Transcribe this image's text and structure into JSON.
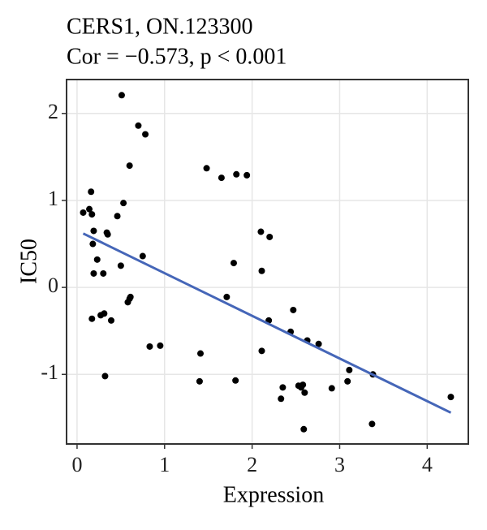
{
  "chart_data": {
    "type": "scatter",
    "title": "CERS1, ON.123300",
    "subtitle": "Cor = −0.573, p < 0.001",
    "x_label": "Expression",
    "y_label": "IC50",
    "xlim": [
      -0.12,
      4.47
    ],
    "ylim": [
      -1.8,
      2.39
    ],
    "xticks": [
      0,
      1,
      2,
      3,
      4
    ],
    "yticks": [
      -1,
      0,
      1,
      2
    ],
    "grid": true,
    "color": "#000000",
    "x": [
      0.07,
      0.14,
      0.16,
      0.17,
      0.19,
      0.18,
      0.23,
      0.19,
      0.3,
      0.17,
      0.27,
      0.31,
      0.34,
      0.35,
      0.39,
      0.32,
      0.46,
      0.53,
      0.51,
      0.5,
      0.6,
      0.58,
      0.61,
      0.6,
      0.7,
      0.78,
      0.75,
      0.83,
      0.95,
      1.48,
      1.65,
      1.82,
      1.94,
      1.79,
      1.71,
      1.41,
      1.4,
      1.81,
      2.1,
      2.2,
      2.11,
      2.11,
      2.19,
      2.47,
      2.44,
      2.35,
      2.33,
      2.53,
      2.56,
      2.6,
      2.58,
      2.59,
      2.63,
      2.76,
      2.91,
      3.09,
      3.11,
      3.38,
      3.37,
      4.27
    ],
    "values": [
      0.86,
      0.9,
      1.1,
      0.84,
      0.65,
      0.5,
      0.32,
      0.16,
      0.16,
      -0.36,
      -0.32,
      -0.3,
      0.63,
      0.61,
      -0.38,
      -1.02,
      0.82,
      0.97,
      2.21,
      0.25,
      1.4,
      -0.17,
      -0.11,
      -0.13,
      1.86,
      1.76,
      0.36,
      -0.68,
      -0.67,
      1.37,
      1.26,
      1.3,
      1.29,
      0.28,
      -0.11,
      -0.76,
      -1.08,
      -1.07,
      0.64,
      0.58,
      0.19,
      -0.73,
      -0.38,
      -0.26,
      -0.51,
      -1.15,
      -1.28,
      -1.13,
      -1.15,
      -1.21,
      -1.12,
      -1.63,
      -0.61,
      -0.65,
      -1.16,
      -1.08,
      -0.95,
      -1.0,
      -1.57,
      -1.26
    ],
    "fit": {
      "x": [
        0.07,
        4.27
      ],
      "y": [
        0.62,
        -1.44
      ],
      "color": "#4566b8"
    }
  }
}
